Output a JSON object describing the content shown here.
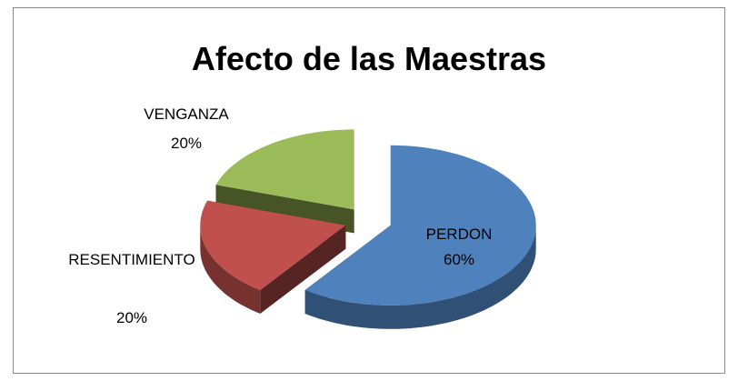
{
  "chart_data": {
    "type": "pie",
    "title": "Afecto de las Maestras",
    "categories": [
      "PERDON",
      "RESENTIMIENTO",
      "VENGANZA"
    ],
    "values": [
      60,
      20,
      20
    ],
    "value_labels": [
      "60%",
      "20%",
      "20%"
    ],
    "colors": [
      "#4f81bd",
      "#c0504d",
      "#9bbb59"
    ]
  }
}
